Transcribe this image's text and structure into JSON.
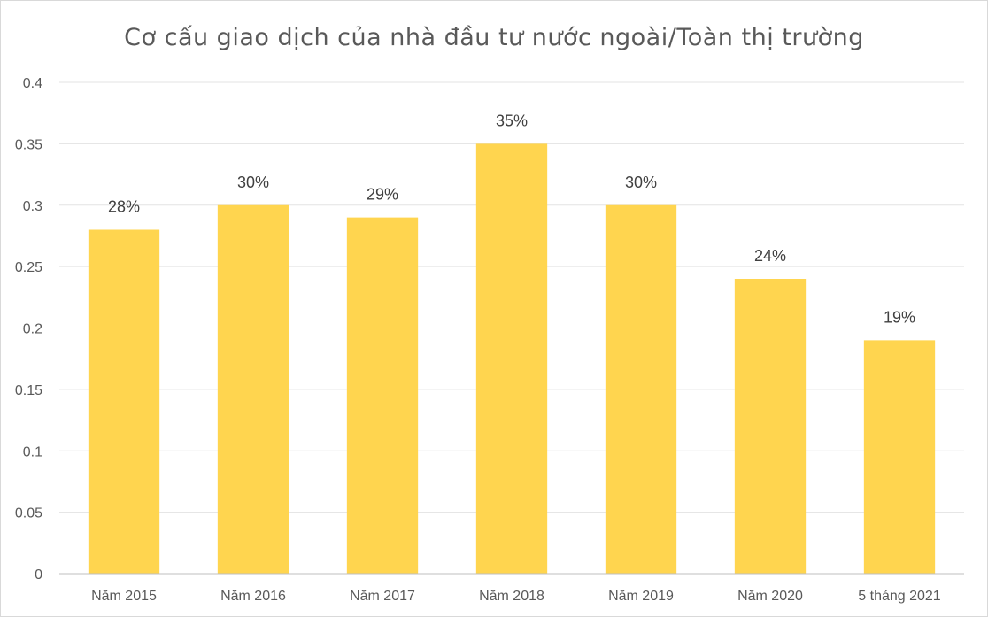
{
  "chart_data": {
    "type": "bar",
    "title": "Cơ cấu giao dịch của nhà đầu tư nước ngoài/Toàn thị trường",
    "xlabel": "",
    "ylabel": "",
    "categories": [
      "Năm 2015",
      "Năm 2016",
      "Năm 2017",
      "Năm 2018",
      "Năm 2019",
      "Năm 2020",
      "5 tháng 2021"
    ],
    "values": [
      0.28,
      0.3,
      0.29,
      0.35,
      0.3,
      0.24,
      0.19
    ],
    "data_labels": [
      "28%",
      "30%",
      "29%",
      "35%",
      "30%",
      "24%",
      "19%"
    ],
    "ylim": [
      0,
      0.4
    ],
    "yticks": [
      0,
      0.05,
      0.1,
      0.15,
      0.2,
      0.25,
      0.3,
      0.35,
      0.4
    ],
    "ytick_labels": [
      "0",
      "0.05",
      "0.1",
      "0.15",
      "0.2",
      "0.25",
      "0.3",
      "0.35",
      "0.4"
    ],
    "grid": true,
    "legend": "none",
    "bar_color": "#FFD54F"
  }
}
